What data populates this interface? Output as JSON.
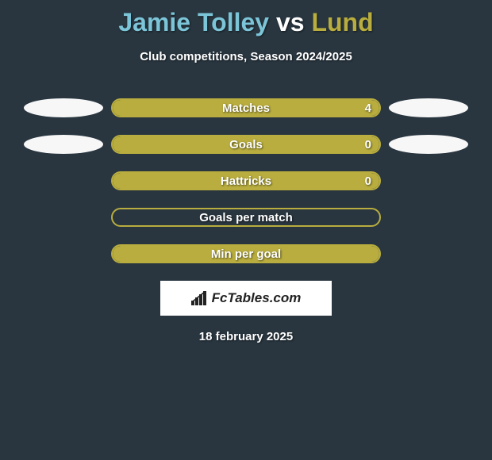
{
  "title": {
    "player1": "Jamie Tolley",
    "vs": "vs",
    "player2": "Lund",
    "player1_color": "#7cc5d8",
    "player2_color": "#b8ad3e"
  },
  "subtitle": "Club competitions, Season 2024/2025",
  "background_color": "#293640",
  "ellipse_left_color": "#f7f7f7",
  "ellipse_right_color": "#f7f7f7",
  "bar_border_color": "#b8ad3e",
  "bar_fill_color": "#b8ad3e",
  "rows": [
    {
      "label": "Matches",
      "value": "4",
      "fill_pct": 100,
      "show_ellipses": true,
      "show_value": true
    },
    {
      "label": "Goals",
      "value": "0",
      "fill_pct": 100,
      "show_ellipses": true,
      "show_value": true
    },
    {
      "label": "Hattricks",
      "value": "0",
      "fill_pct": 100,
      "show_ellipses": false,
      "show_value": true
    },
    {
      "label": "Goals per match",
      "value": "",
      "fill_pct": 0,
      "show_ellipses": false,
      "show_value": false
    },
    {
      "label": "Min per goal",
      "value": "",
      "fill_pct": 100,
      "show_ellipses": false,
      "show_value": false
    }
  ],
  "logo_text": "FcTables.com",
  "date": "18 february 2025"
}
